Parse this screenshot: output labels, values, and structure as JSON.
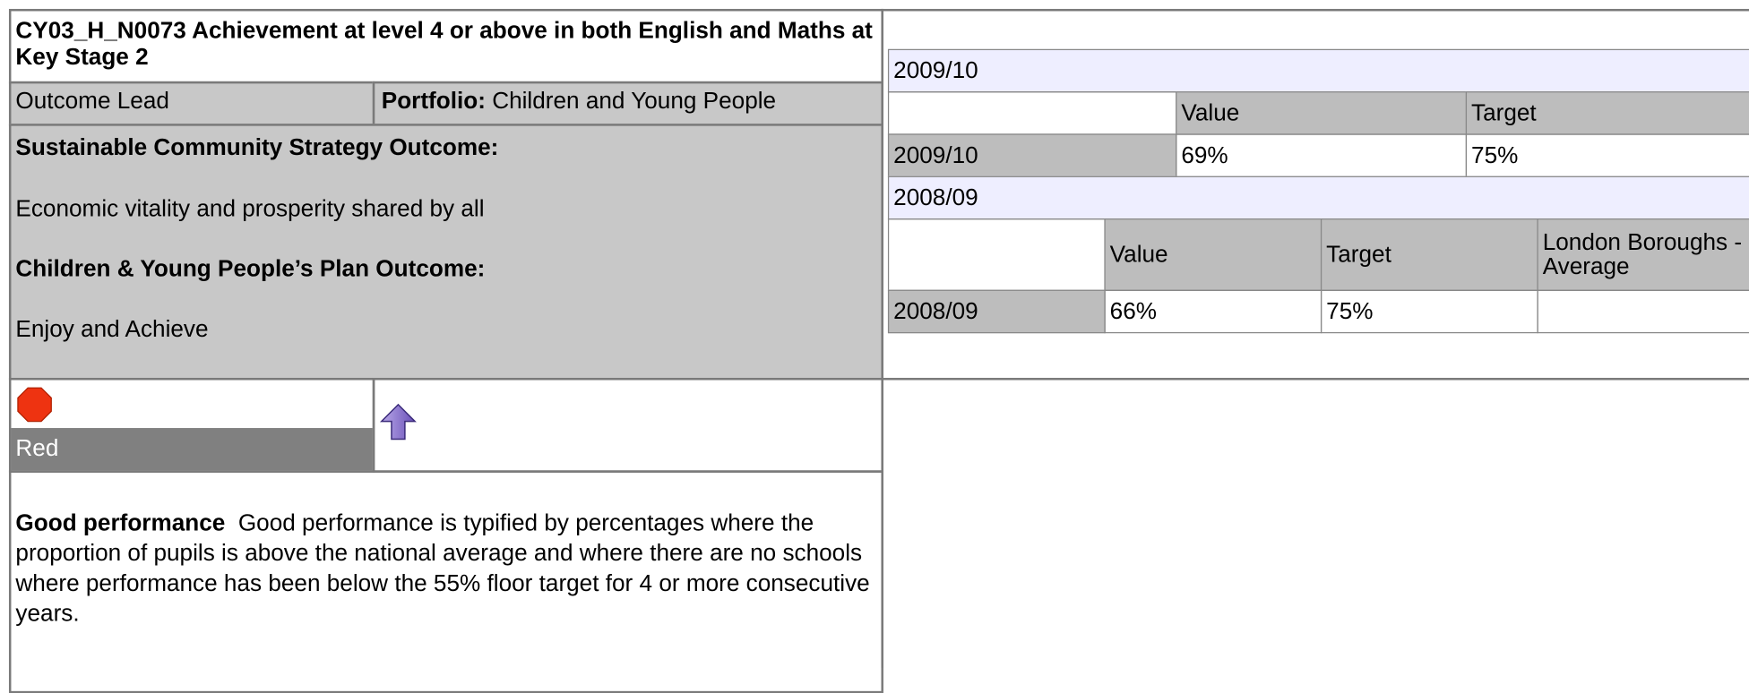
{
  "header": {
    "title": "CY03_H_N0073  Achievement at level 4 or above in both English and Maths at Key Stage 2"
  },
  "lead": {
    "role": "Outcome Lead",
    "portfolio_label": "Portfolio:",
    "portfolio": "Children and Young People"
  },
  "outcomes": [
    {
      "heading": "Sustainable Community Strategy Outcome:",
      "text": "Economic vitality and prosperity shared by all"
    },
    {
      "heading": "Children & Young People’s Plan Outcome:",
      "text": "Enjoy and Achieve"
    }
  ],
  "status": {
    "label": "Red"
  },
  "description": {
    "heading": "Good performance",
    "text": "Good performance is typified by percentages where the proportion of pupils is above the national average and where there are no schools where performance has been below the 55% floor target for 4 or more consecutive years."
  },
  "tables": [
    {
      "period": "2009/10",
      "columns": [
        "Value",
        "Target"
      ],
      "rows": [
        [
          "2009/10",
          "69%",
          "75%"
        ]
      ]
    },
    {
      "period": "2008/09",
      "columns": [
        "Value",
        "Target",
        "London Boroughs - Average"
      ],
      "rows": [
        [
          "2008/09",
          "66%",
          "75%"
        ]
      ]
    }
  ]
}
